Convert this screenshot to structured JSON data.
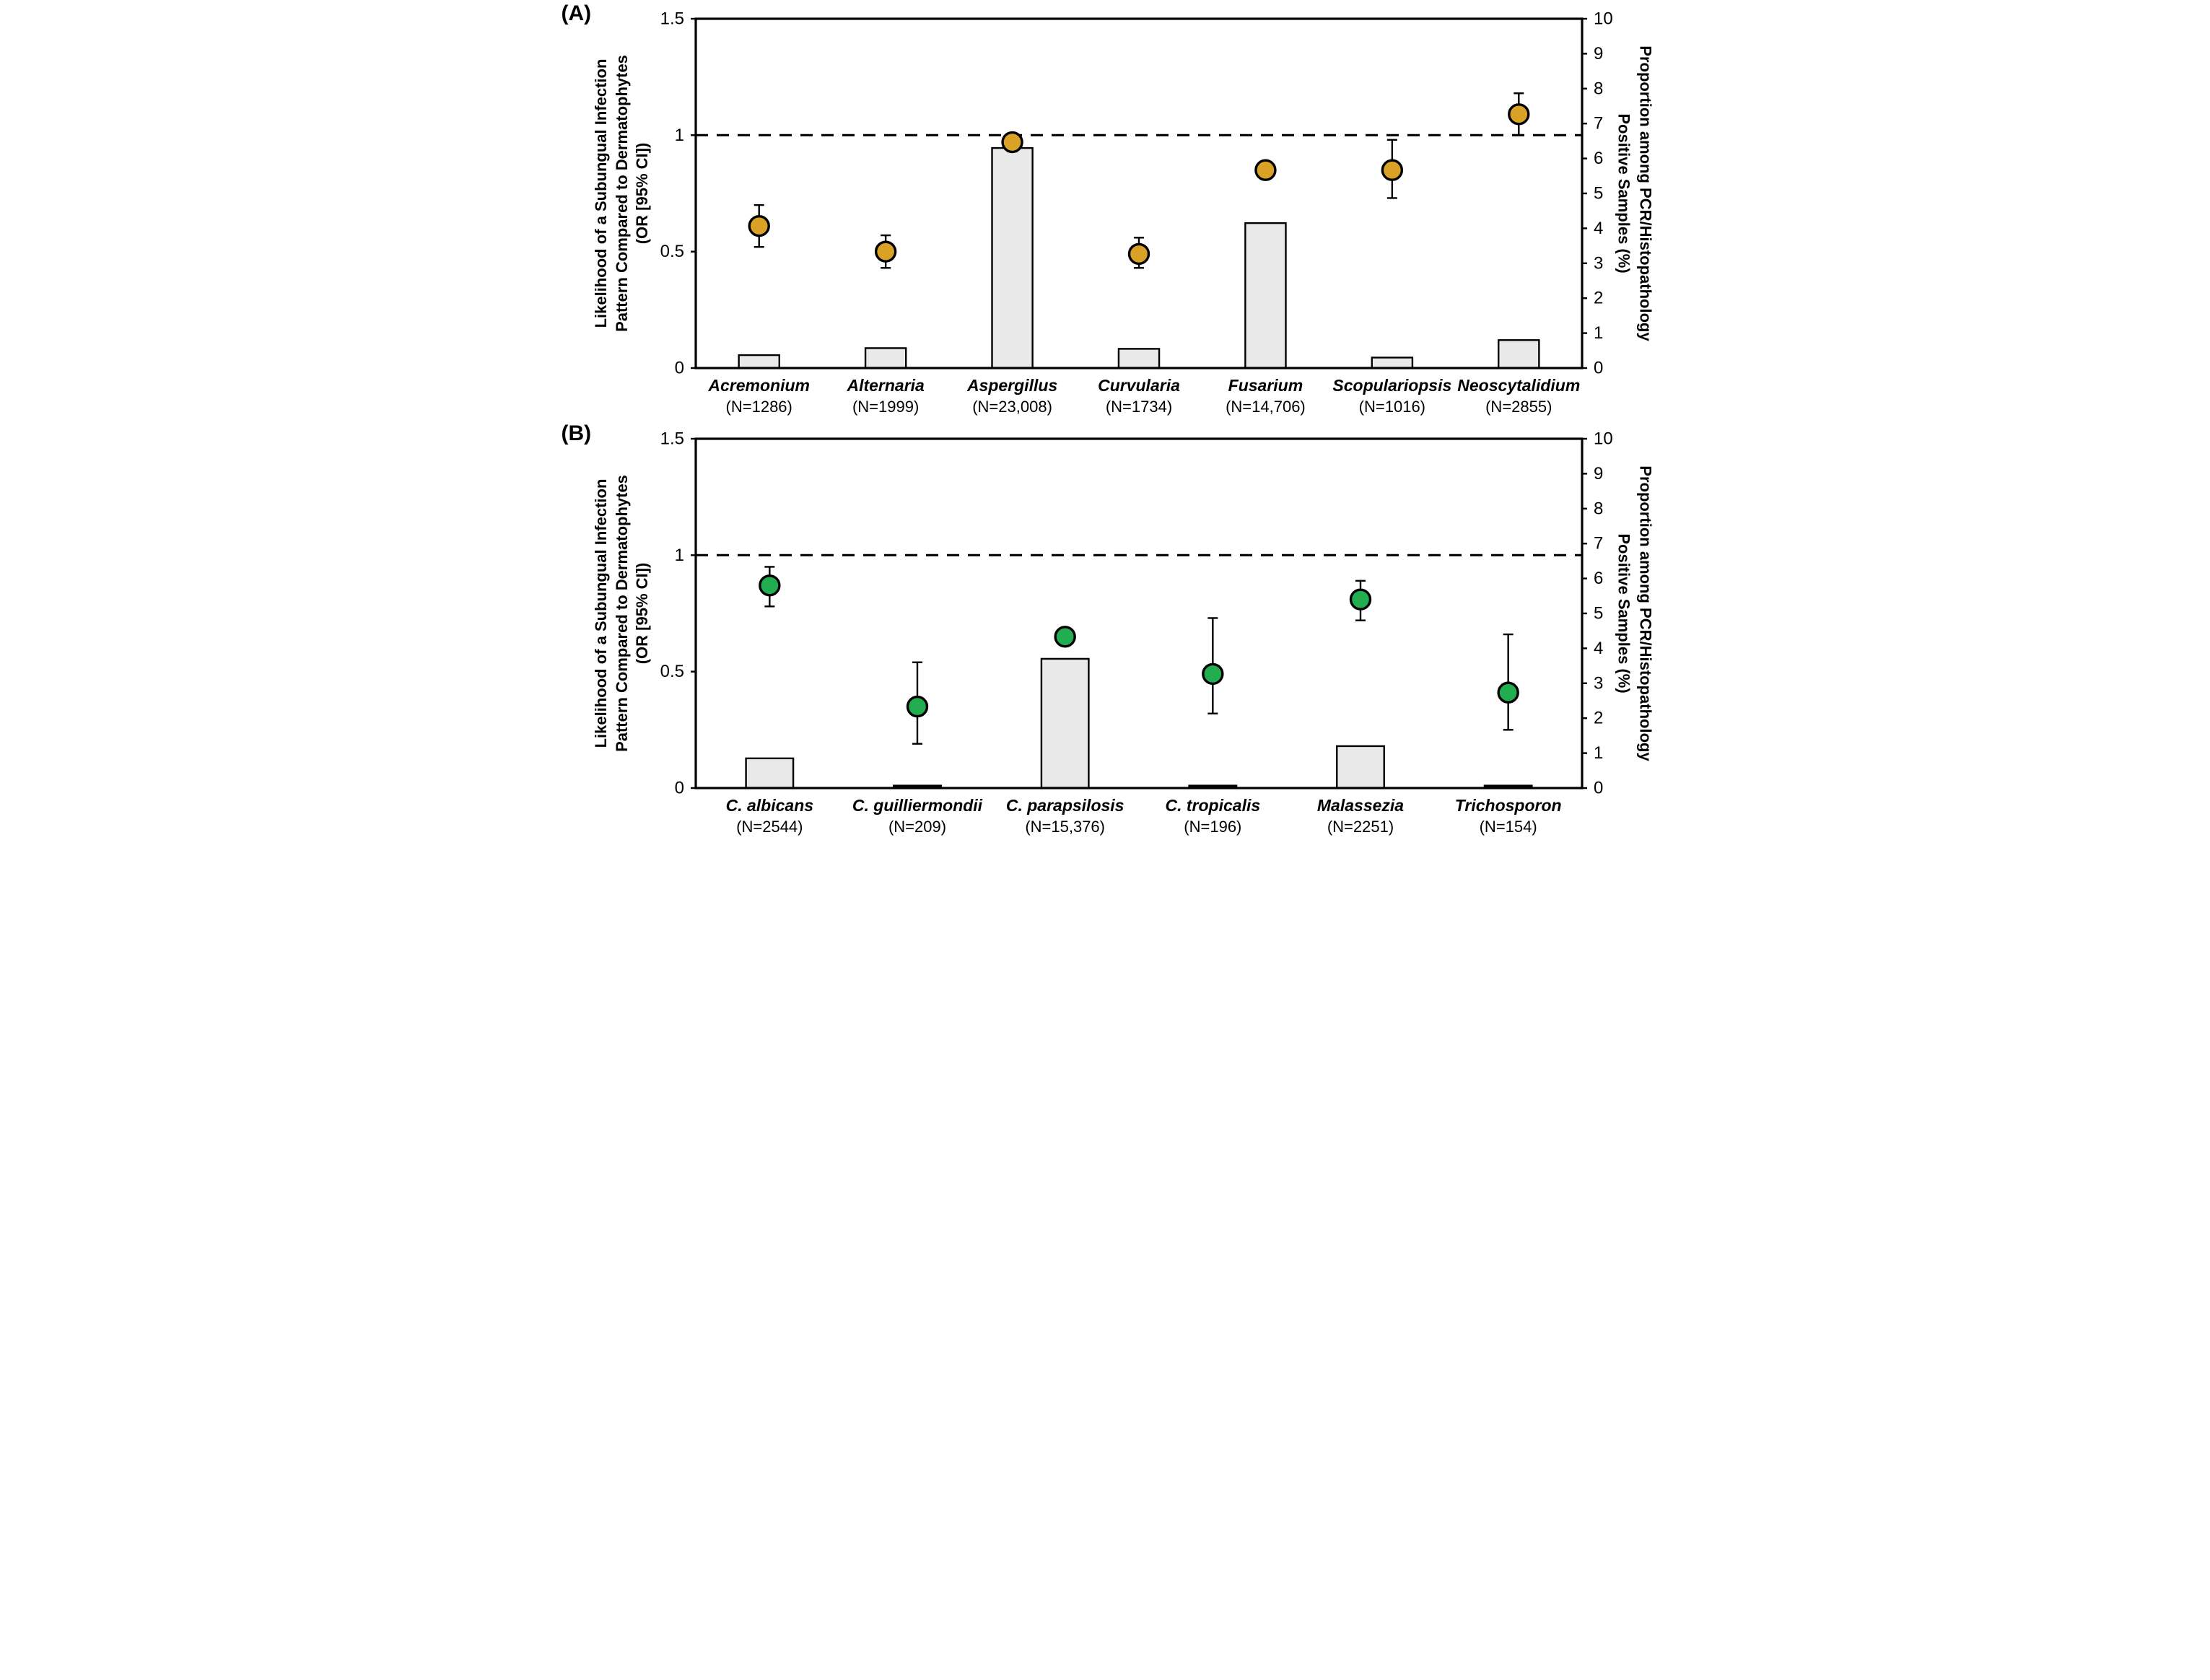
{
  "chart_data": [
    {
      "type": "bar+scatter-dual-axis",
      "label": "(A)",
      "marker_color": "#D9A226",
      "bar_fill": "#E9E9E9",
      "reference_line_or": 1,
      "y_left": {
        "title_lines": [
          "Likelihood of a Subungual Infection",
          "Pattern Compared to Dermatophytes",
          "(OR [95% CI])"
        ],
        "min": 0,
        "max": 1.5,
        "ticks": [
          0,
          0.5,
          1,
          1.5
        ],
        "tick_labels": [
          "0",
          "0.5",
          "1",
          "1.5"
        ]
      },
      "y_right": {
        "title_lines": [
          "Proportion among PCR/Histopathology",
          "Positive Samples (%)"
        ],
        "min": 0,
        "max": 10,
        "ticks": [
          0,
          1,
          2,
          3,
          4,
          5,
          6,
          7,
          8,
          9,
          10
        ],
        "tick_labels": [
          "0",
          "1",
          "2",
          "3",
          "4",
          "5",
          "6",
          "7",
          "8",
          "9",
          "10"
        ]
      },
      "series": [
        {
          "name": "Acremonium",
          "n_label": "(N=1286)",
          "or": 0.61,
          "ci_low": 0.52,
          "ci_high": 0.7,
          "proportion_pct": 0.37
        },
        {
          "name": "Alternaria",
          "n_label": "(N=1999)",
          "or": 0.5,
          "ci_low": 0.43,
          "ci_high": 0.57,
          "proportion_pct": 0.57
        },
        {
          "name": "Aspergillus",
          "n_label": "(N=23,008)",
          "or": 0.97,
          "ci_low": 0.93,
          "ci_high": 1.0,
          "proportion_pct": 6.3
        },
        {
          "name": "Curvularia",
          "n_label": "(N=1734)",
          "or": 0.49,
          "ci_low": 0.43,
          "ci_high": 0.56,
          "proportion_pct": 0.55
        },
        {
          "name": "Fusarium",
          "n_label": "(N=14,706)",
          "or": 0.85,
          "ci_low": 0.84,
          "ci_high": 0.86,
          "proportion_pct": 4.15
        },
        {
          "name": "Scopulariopsis",
          "n_label": "(N=1016)",
          "or": 0.85,
          "ci_low": 0.73,
          "ci_high": 0.98,
          "proportion_pct": 0.3
        },
        {
          "name": "Neoscytalidium",
          "n_label": "(N=2855)",
          "or": 1.09,
          "ci_low": 1.0,
          "ci_high": 1.18,
          "proportion_pct": 0.8
        }
      ]
    },
    {
      "type": "bar+scatter-dual-axis",
      "label": "(B)",
      "marker_color": "#22AE50",
      "bar_fill": "#E9E9E9",
      "reference_line_or": 1,
      "y_left": {
        "title_lines": [
          "Likelihood of a Subungual Infection",
          "Pattern Compared to Dermatophytes",
          "(OR [95% CI])"
        ],
        "min": 0,
        "max": 1.5,
        "ticks": [
          0,
          0.5,
          1,
          1.5
        ],
        "tick_labels": [
          "0",
          "0.5",
          "1",
          "1.5"
        ]
      },
      "y_right": {
        "title_lines": [
          "Proportion among PCR/Histopathology",
          "Positive Samples (%)"
        ],
        "min": 0,
        "max": 10,
        "ticks": [
          0,
          1,
          2,
          3,
          4,
          5,
          6,
          7,
          8,
          9,
          10
        ],
        "tick_labels": [
          "0",
          "1",
          "2",
          "3",
          "4",
          "5",
          "6",
          "7",
          "8",
          "9",
          "10"
        ]
      },
      "series": [
        {
          "name": "C. albicans",
          "n_label": "(N=2544)",
          "or": 0.87,
          "ci_low": 0.78,
          "ci_high": 0.95,
          "proportion_pct": 0.85
        },
        {
          "name": "C. guilliermondii",
          "n_label": "(N=209)",
          "or": 0.35,
          "ci_low": 0.19,
          "ci_high": 0.54,
          "proportion_pct": 0.07
        },
        {
          "name": "C. parapsilosis",
          "n_label": "(N=15,376)",
          "or": 0.65,
          "ci_low": 0.63,
          "ci_high": 0.67,
          "proportion_pct": 3.7
        },
        {
          "name": "C. tropicalis",
          "n_label": "(N=196)",
          "or": 0.49,
          "ci_low": 0.32,
          "ci_high": 0.73,
          "proportion_pct": 0.07
        },
        {
          "name": "Malassezia",
          "n_label": "(N=2251)",
          "or": 0.81,
          "ci_low": 0.72,
          "ci_high": 0.89,
          "proportion_pct": 1.2
        },
        {
          "name": "Trichosporon",
          "n_label": "(N=154)",
          "or": 0.41,
          "ci_low": 0.25,
          "ci_high": 0.66,
          "proportion_pct": 0.07
        }
      ]
    }
  ]
}
